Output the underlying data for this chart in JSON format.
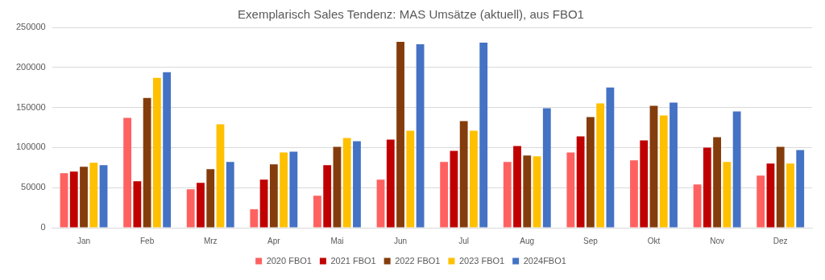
{
  "chart_data": {
    "type": "bar",
    "title": "Exemplarisch Sales Tendenz: MAS Umsätze (aktuell), aus FBO1",
    "categories": [
      "Jan",
      "Feb",
      "Mrz",
      "Apr",
      "Mai",
      "Jun",
      "Jul",
      "Aug",
      "Sep",
      "Okt",
      "Nov",
      "Dez"
    ],
    "series": [
      {
        "name": "2020 FBO1",
        "color": "#ff6161",
        "values": [
          68000,
          137000,
          48000,
          23000,
          40000,
          60000,
          82000,
          82000,
          94000,
          84000,
          54000,
          65000
        ]
      },
      {
        "name": "2021 FBO1",
        "color": "#c00000",
        "values": [
          70000,
          58000,
          56000,
          60000,
          78000,
          110000,
          96000,
          102000,
          114000,
          109000,
          100000,
          80000
        ]
      },
      {
        "name": "2022 FBO1",
        "color": "#843c0c",
        "values": [
          76000,
          162000,
          73000,
          79000,
          101000,
          232000,
          133000,
          90000,
          138000,
          152000,
          113000,
          101000
        ]
      },
      {
        "name": "2023 FBO1",
        "color": "#ffc000",
        "values": [
          81000,
          187000,
          129000,
          94000,
          112000,
          121000,
          121000,
          89000,
          155000,
          140000,
          82000,
          80000
        ]
      },
      {
        "name": "2024FBO1",
        "color": "#4472c4",
        "values": [
          78000,
          194000,
          82000,
          95000,
          108000,
          229000,
          231000,
          149000,
          175000,
          156000,
          145000,
          97000
        ]
      }
    ],
    "ylim": [
      0,
      250000
    ],
    "yticks": [
      0,
      50000,
      100000,
      150000,
      200000,
      250000
    ],
    "grid": "y",
    "legend": "bottom"
  }
}
